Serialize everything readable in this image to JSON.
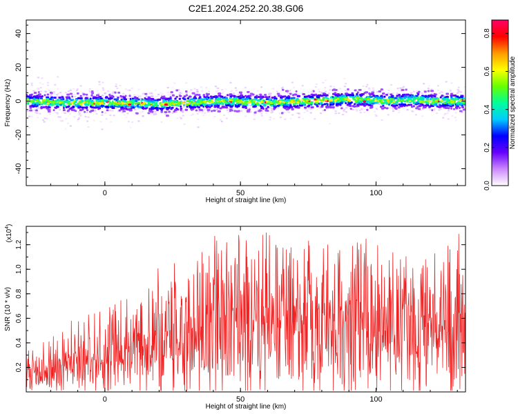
{
  "figure_title": "C2E1.2024.252.20.38.G06",
  "chart_data": [
    {
      "type": "heatmap",
      "title": "",
      "xlabel": "Height of straight line (km)",
      "ylabel": "Frequency (Hz)",
      "xlim": [
        -29,
        133
      ],
      "ylim": [
        -50,
        48
      ],
      "xticks": [
        0,
        50,
        100
      ],
      "yticks": [
        -40,
        -20,
        0,
        20,
        40
      ],
      "grid": false,
      "ridge": {
        "description_free": true,
        "x": [
          -29,
          -15,
          0,
          15,
          18,
          30,
          45,
          60,
          75,
          90,
          94,
          105,
          115,
          120,
          125,
          133
        ],
        "frequency": [
          0,
          -1,
          -1,
          -1.5,
          -2,
          -1,
          0,
          -1,
          0,
          1,
          1,
          0,
          1,
          0,
          0,
          0
        ]
      },
      "colorbar": {
        "label": "Normalized spectral amplitude",
        "range": [
          0.0,
          0.87
        ],
        "ticks": [
          0.0,
          0.2,
          0.4,
          0.6,
          0.8
        ],
        "colors": [
          "#ffffff",
          "#cc88ff",
          "#6600ff",
          "#0000ff",
          "#00ccff",
          "#00ff99",
          "#66ff00",
          "#ffff00",
          "#ff9900",
          "#ff0000",
          "#ff0066"
        ]
      }
    },
    {
      "type": "line",
      "title": "",
      "xlabel": "Height of straight line (km)",
      "ylabel": "SNR (10 * v/v)",
      "y_multiplier": "(x10",
      "y_multiplier_exp": "4",
      "y_multiplier_close": ")",
      "xlim": [
        -29,
        133
      ],
      "ylim": [
        0.0,
        1.35
      ],
      "xticks": [
        0,
        50,
        100
      ],
      "yticks": [
        0.2,
        0.4,
        0.6,
        0.8,
        1.0,
        1.2
      ],
      "ytick_labels": [
        "0.2",
        "0.4",
        "0.6",
        "0.8",
        "1.0",
        "1.2"
      ],
      "grid": false,
      "series": [
        {
          "color": "#ee2222",
          "envelope_x": [
            -29,
            -20,
            -10,
            0,
            10,
            20,
            30,
            40,
            50,
            60,
            70,
            80,
            90,
            100,
            110,
            120,
            133
          ],
          "envelope_max": [
            0.42,
            0.45,
            0.62,
            0.68,
            0.82,
            1.05,
            1.12,
            1.3,
            1.28,
            1.3,
            1.28,
            1.22,
            1.3,
            1.22,
            1.15,
            1.3,
            1.32
          ],
          "envelope_mean": [
            0.14,
            0.16,
            0.24,
            0.3,
            0.34,
            0.4,
            0.46,
            0.52,
            0.55,
            0.55,
            0.55,
            0.53,
            0.54,
            0.52,
            0.5,
            0.5,
            0.52
          ]
        }
      ]
    }
  ]
}
